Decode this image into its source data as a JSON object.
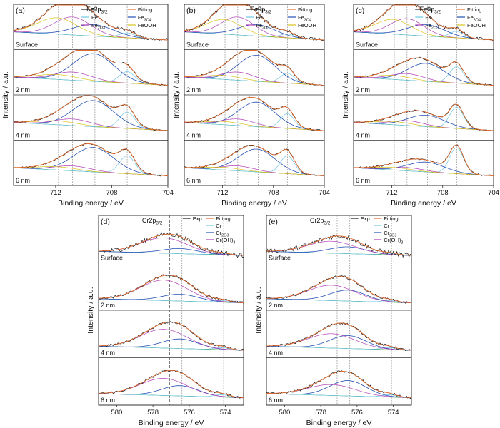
{
  "chart_data": [
    {
      "panel": "(a)",
      "type": "line",
      "element": "Fe",
      "spectrum_label": "Fe2p",
      "spectrum_sub": "3/2",
      "xlabel": "Binding energy / eV",
      "ylabel": "Intensity / a.u.",
      "xlim": [
        715,
        704
      ],
      "xticks": [
        "712",
        "708",
        "704"
      ],
      "subpanels": [
        "Surface",
        "2 nm",
        "4 nm",
        "6 nm"
      ],
      "ref_lines": [
        711.8,
        710.8,
        709.2,
        706.9
      ],
      "legend": [
        {
          "name": "Exp.",
          "sub": ""
        },
        {
          "name": "Fitting",
          "sub": ""
        },
        {
          "name": "Fe",
          "sub": ""
        },
        {
          "name": "Fe",
          "sub": "3O4"
        },
        {
          "name": "Fe",
          "sub": "2O3"
        },
        {
          "name": "FeOOH",
          "sub": ""
        }
      ]
    },
    {
      "panel": "(b)",
      "type": "line",
      "element": "Fe",
      "spectrum_label": "Fe2p",
      "spectrum_sub": "3/2",
      "xlabel": "Binding energy / eV",
      "ylabel": "Intensity / a.u.",
      "xlim": [
        715,
        704
      ],
      "xticks": [
        "712",
        "708",
        "704"
      ],
      "subpanels": [
        "Surface",
        "2 nm",
        "4 nm",
        "6 nm"
      ],
      "ref_lines": [
        711.8,
        710.8,
        709.2,
        706.9
      ],
      "legend": [
        {
          "name": "Exp.",
          "sub": ""
        },
        {
          "name": "Fitting",
          "sub": ""
        },
        {
          "name": "Fe",
          "sub": ""
        },
        {
          "name": "Fe",
          "sub": "3O4"
        },
        {
          "name": "Fe",
          "sub": "2O3"
        },
        {
          "name": "FeOOH",
          "sub": ""
        }
      ]
    },
    {
      "panel": "(c)",
      "type": "line",
      "element": "Fe",
      "spectrum_label": "Fe2p",
      "spectrum_sub": "3/2",
      "xlabel": "Binding energy / eV",
      "ylabel": "Intensity / a.u.",
      "xlim": [
        715,
        704
      ],
      "xticks": [
        "712",
        "708",
        "704"
      ],
      "subpanels": [
        "Surface",
        "2 nm",
        "4 nm",
        "6 nm"
      ],
      "ref_lines": [
        711.8,
        710.8,
        709.2,
        706.9
      ],
      "legend": [
        {
          "name": "Exp.",
          "sub": ""
        },
        {
          "name": "Fitting",
          "sub": ""
        },
        {
          "name": "Fe",
          "sub": ""
        },
        {
          "name": "Fe",
          "sub": "3O4"
        },
        {
          "name": "Fe",
          "sub": "2O3"
        },
        {
          "name": "FeOOH",
          "sub": ""
        }
      ]
    },
    {
      "panel": "(d)",
      "type": "line",
      "element": "Cr",
      "spectrum_label": "Cr2p",
      "spectrum_sub": "3/2",
      "xlabel": "Binding energy / eV",
      "ylabel": "Intensity / a.u.",
      "xlim": [
        581,
        573
      ],
      "xticks": [
        "580",
        "578",
        "576",
        "574"
      ],
      "subpanels": [
        "Surface",
        "2 nm",
        "4 nm",
        "6 nm"
      ],
      "ref_lines": [
        577.1,
        576.4,
        574.1
      ],
      "legend": [
        {
          "name": "Exp.",
          "sub": ""
        },
        {
          "name": "Fitting",
          "sub": ""
        },
        {
          "name": "Cr",
          "sub": ""
        },
        {
          "name": "Cr",
          "sub": "2O3"
        },
        {
          "name": "Cr(OH)",
          "sub": "3"
        }
      ]
    },
    {
      "panel": "(e)",
      "type": "line",
      "element": "Cr",
      "spectrum_label": "Cr2p",
      "spectrum_sub": "3/2",
      "xlabel": "Binding energy / eV",
      "ylabel": "Intensity / a.u.",
      "xlim": [
        581,
        573
      ],
      "xticks": [
        "580",
        "578",
        "576",
        "574"
      ],
      "subpanels": [
        "Surface",
        "2 nm",
        "4 nm",
        "6 nm"
      ],
      "ref_lines": [
        577.1,
        576.4,
        574.1
      ],
      "legend": [
        {
          "name": "Exp.",
          "sub": ""
        },
        {
          "name": "Fitting",
          "sub": ""
        },
        {
          "name": "Cr",
          "sub": ""
        },
        {
          "name": "Cr",
          "sub": "2O3"
        },
        {
          "name": "Cr(OH)",
          "sub": "3"
        }
      ]
    }
  ],
  "colors": {
    "exp": "#1a1a1a",
    "fitting": "#e06a2c",
    "metal": "#6fc7e3",
    "oxide_a": "#2451b3",
    "oxide_b": "#b13fb5",
    "hydroxide": "#d8c21a",
    "background": "#3f9a4a",
    "frame": "#333333"
  }
}
